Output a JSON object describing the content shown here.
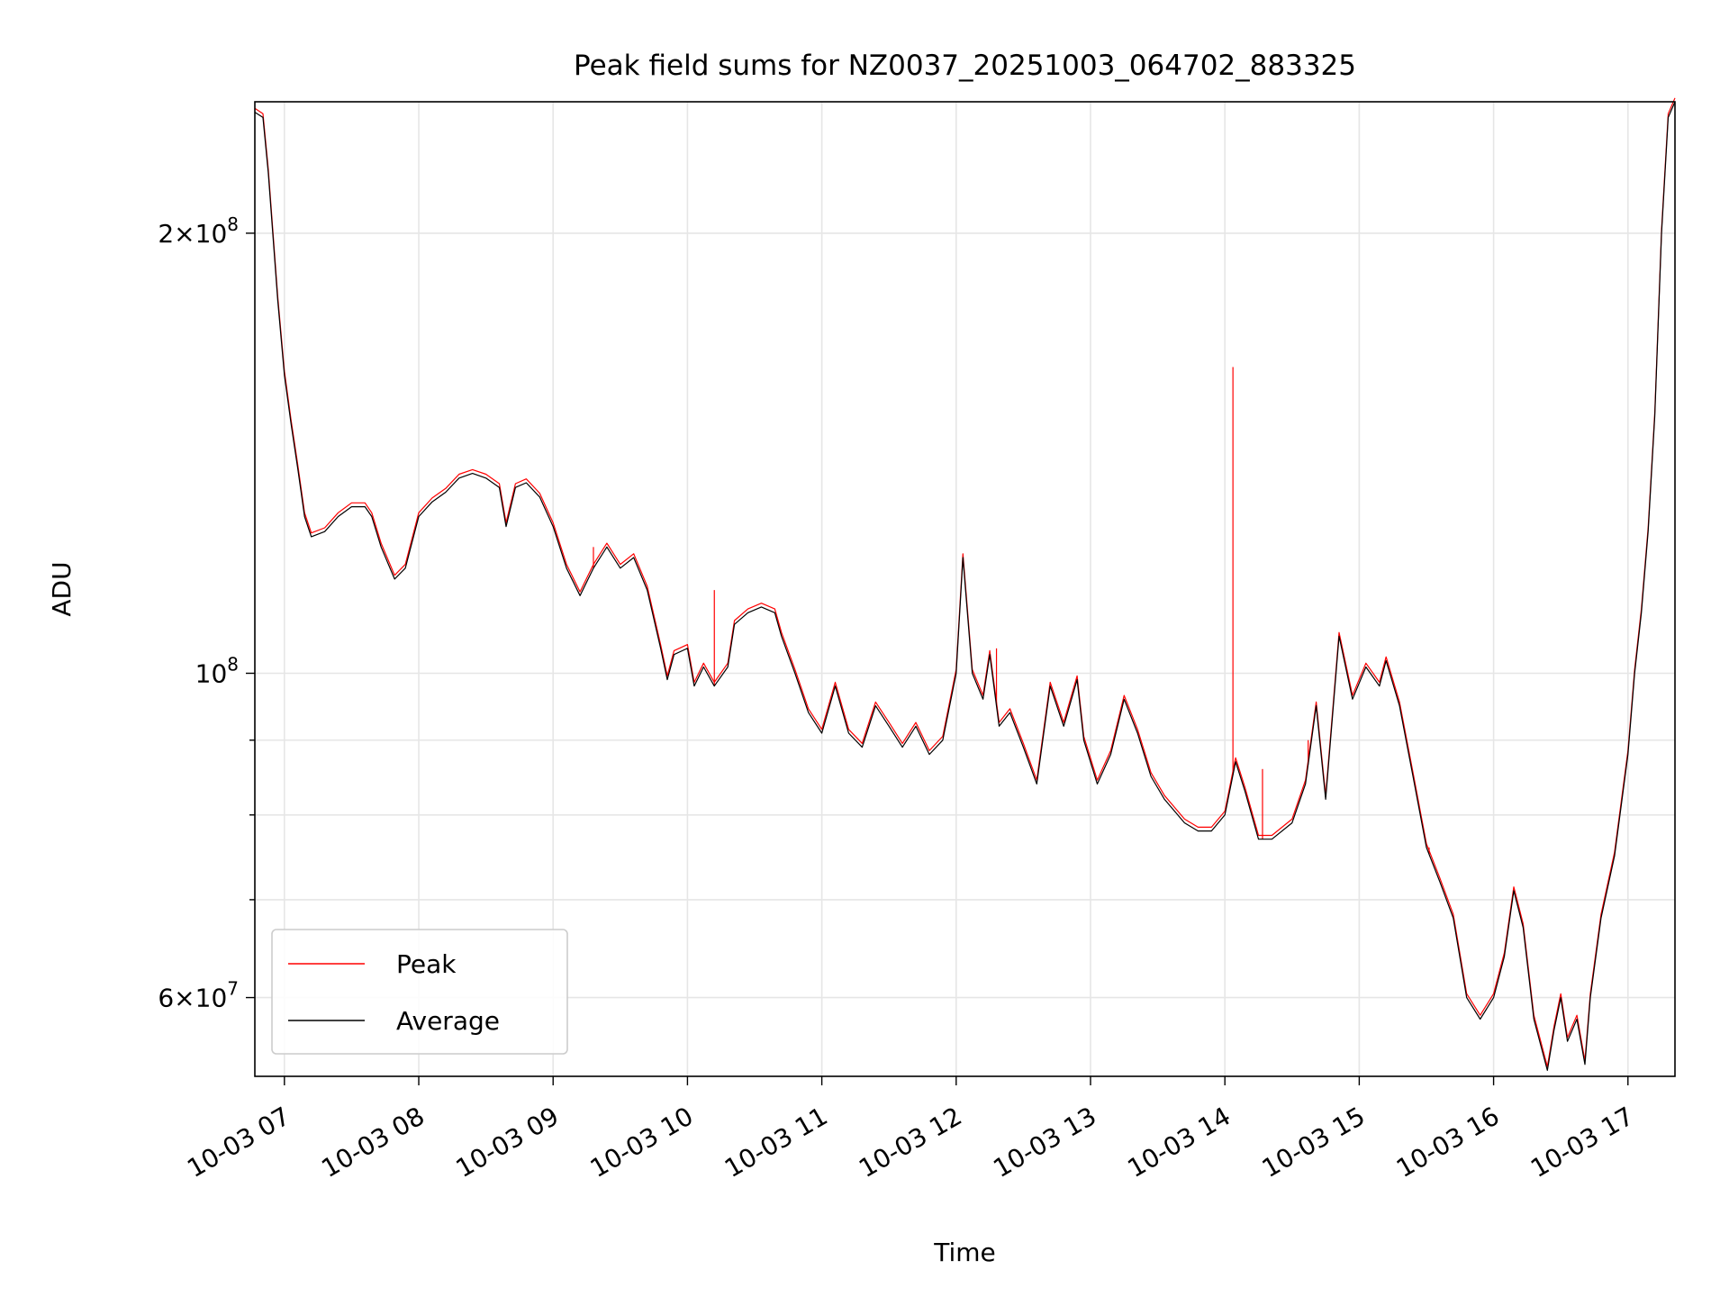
{
  "chart_data": {
    "type": "line",
    "title": "Peak field sums for NZ0037_20251003_064702_883325",
    "xlabel": "Time",
    "ylabel": "ADU",
    "yscale": "log",
    "grid": true,
    "legend_position": "lower-left",
    "x_unit": "hour of 2025-10-03",
    "xlim": [
      6.78,
      17.35
    ],
    "ylim": [
      53000000.0,
      246000000.0
    ],
    "x_ticks": [
      {
        "value": 7,
        "label": "10-03 07"
      },
      {
        "value": 8,
        "label": "10-03 08"
      },
      {
        "value": 9,
        "label": "10-03 09"
      },
      {
        "value": 10,
        "label": "10-03 10"
      },
      {
        "value": 11,
        "label": "10-03 11"
      },
      {
        "value": 12,
        "label": "10-03 12"
      },
      {
        "value": 13,
        "label": "10-03 13"
      },
      {
        "value": 14,
        "label": "10-03 14"
      },
      {
        "value": 15,
        "label": "10-03 15"
      },
      {
        "value": 16,
        "label": "10-03 16"
      },
      {
        "value": 17,
        "label": "10-03 17"
      }
    ],
    "y_major_ticks": [
      {
        "value": 60000000,
        "base": "6×10",
        "exp": "7"
      },
      {
        "value": 100000000,
        "base": "10",
        "exp": "8"
      },
      {
        "value": 200000000,
        "base": "2×10",
        "exp": "8"
      }
    ],
    "y_minor_ticks": [
      70000000,
      80000000,
      90000000
    ],
    "series": [
      {
        "name": "Peak",
        "color": "#ff0000",
        "stroke_width": 1.2,
        "spikes": [
          {
            "x": 14.06,
            "y": 162000000
          },
          {
            "x": 12.3,
            "y": 104000000
          },
          {
            "x": 14.28,
            "y": 86000000
          },
          {
            "x": 15.52,
            "y": 76000000
          },
          {
            "x": 14.62,
            "y": 90000000
          },
          {
            "x": 10.2,
            "y": 114000000
          },
          {
            "x": 9.3,
            "y": 122000000
          }
        ]
      },
      {
        "name": "Average",
        "color": "#000000",
        "stroke_width": 1.2,
        "points": [
          [
            6.78,
            242000000
          ],
          [
            6.84,
            240000000
          ],
          [
            6.88,
            220000000
          ],
          [
            6.95,
            180000000
          ],
          [
            7.0,
            160000000
          ],
          [
            7.05,
            148000000
          ],
          [
            7.1,
            138000000
          ],
          [
            7.15,
            128000000
          ],
          [
            7.2,
            124000000
          ],
          [
            7.3,
            125000000
          ],
          [
            7.4,
            128000000
          ],
          [
            7.5,
            130000000
          ],
          [
            7.6,
            130000000
          ],
          [
            7.65,
            128000000
          ],
          [
            7.72,
            122000000
          ],
          [
            7.82,
            116000000
          ],
          [
            7.9,
            118000000
          ],
          [
            8.0,
            128000000
          ],
          [
            8.1,
            131000000
          ],
          [
            8.2,
            133000000
          ],
          [
            8.3,
            136000000
          ],
          [
            8.4,
            137000000
          ],
          [
            8.5,
            136000000
          ],
          [
            8.6,
            134000000
          ],
          [
            8.65,
            126000000
          ],
          [
            8.72,
            134000000
          ],
          [
            8.8,
            135000000
          ],
          [
            8.9,
            132000000
          ],
          [
            9.0,
            126000000
          ],
          [
            9.1,
            118000000
          ],
          [
            9.2,
            113000000
          ],
          [
            9.3,
            118000000
          ],
          [
            9.4,
            122000000
          ],
          [
            9.5,
            118000000
          ],
          [
            9.6,
            120000000
          ],
          [
            9.7,
            114000000
          ],
          [
            9.8,
            104000000
          ],
          [
            9.85,
            99000000
          ],
          [
            9.9,
            103000000
          ],
          [
            10.0,
            104000000
          ],
          [
            10.05,
            98000000
          ],
          [
            10.12,
            101000000
          ],
          [
            10.2,
            98000000
          ],
          [
            10.3,
            101000000
          ],
          [
            10.35,
            108000000
          ],
          [
            10.45,
            110000000
          ],
          [
            10.55,
            111000000
          ],
          [
            10.65,
            110000000
          ],
          [
            10.7,
            106000000
          ],
          [
            10.8,
            100000000
          ],
          [
            10.9,
            94000000
          ],
          [
            11.0,
            91000000
          ],
          [
            11.1,
            98000000
          ],
          [
            11.2,
            91000000
          ],
          [
            11.3,
            89000000
          ],
          [
            11.4,
            95000000
          ],
          [
            11.5,
            92000000
          ],
          [
            11.6,
            89000000
          ],
          [
            11.7,
            92000000
          ],
          [
            11.8,
            88000000
          ],
          [
            11.9,
            90000000
          ],
          [
            12.0,
            100000000
          ],
          [
            12.05,
            120000000
          ],
          [
            12.12,
            100000000
          ],
          [
            12.2,
            96000000
          ],
          [
            12.25,
            103000000
          ],
          [
            12.32,
            92000000
          ],
          [
            12.4,
            94000000
          ],
          [
            12.5,
            89000000
          ],
          [
            12.6,
            84000000
          ],
          [
            12.7,
            98000000
          ],
          [
            12.8,
            92000000
          ],
          [
            12.9,
            99000000
          ],
          [
            12.95,
            90000000
          ],
          [
            13.05,
            84000000
          ],
          [
            13.15,
            88000000
          ],
          [
            13.25,
            96000000
          ],
          [
            13.35,
            91000000
          ],
          [
            13.45,
            85000000
          ],
          [
            13.55,
            82000000
          ],
          [
            13.7,
            79000000
          ],
          [
            13.8,
            78000000
          ],
          [
            13.9,
            78000000
          ],
          [
            14.0,
            80000000
          ],
          [
            14.08,
            87000000
          ],
          [
            14.15,
            83000000
          ],
          [
            14.25,
            77000000
          ],
          [
            14.35,
            77000000
          ],
          [
            14.5,
            79000000
          ],
          [
            14.6,
            84000000
          ],
          [
            14.68,
            95000000
          ],
          [
            14.75,
            82000000
          ],
          [
            14.85,
            106000000
          ],
          [
            14.95,
            96000000
          ],
          [
            15.05,
            101000000
          ],
          [
            15.15,
            98000000
          ],
          [
            15.2,
            102000000
          ],
          [
            15.3,
            95000000
          ],
          [
            15.4,
            85000000
          ],
          [
            15.5,
            76000000
          ],
          [
            15.6,
            72000000
          ],
          [
            15.7,
            68000000
          ],
          [
            15.8,
            60000000
          ],
          [
            15.9,
            58000000
          ],
          [
            16.0,
            60000000
          ],
          [
            16.08,
            64000000
          ],
          [
            16.15,
            71000000
          ],
          [
            16.22,
            67000000
          ],
          [
            16.3,
            58000000
          ],
          [
            16.4,
            53500000
          ],
          [
            16.45,
            57000000
          ],
          [
            16.5,
            60000000
          ],
          [
            16.55,
            56000000
          ],
          [
            16.62,
            58000000
          ],
          [
            16.68,
            54000000
          ],
          [
            16.72,
            60000000
          ],
          [
            16.8,
            68000000
          ],
          [
            16.9,
            75000000
          ],
          [
            17.0,
            88000000
          ],
          [
            17.05,
            100000000
          ],
          [
            17.1,
            110000000
          ],
          [
            17.15,
            125000000
          ],
          [
            17.2,
            150000000
          ],
          [
            17.25,
            200000000
          ],
          [
            17.3,
            240000000
          ],
          [
            17.35,
            246000000
          ]
        ]
      }
    ]
  }
}
